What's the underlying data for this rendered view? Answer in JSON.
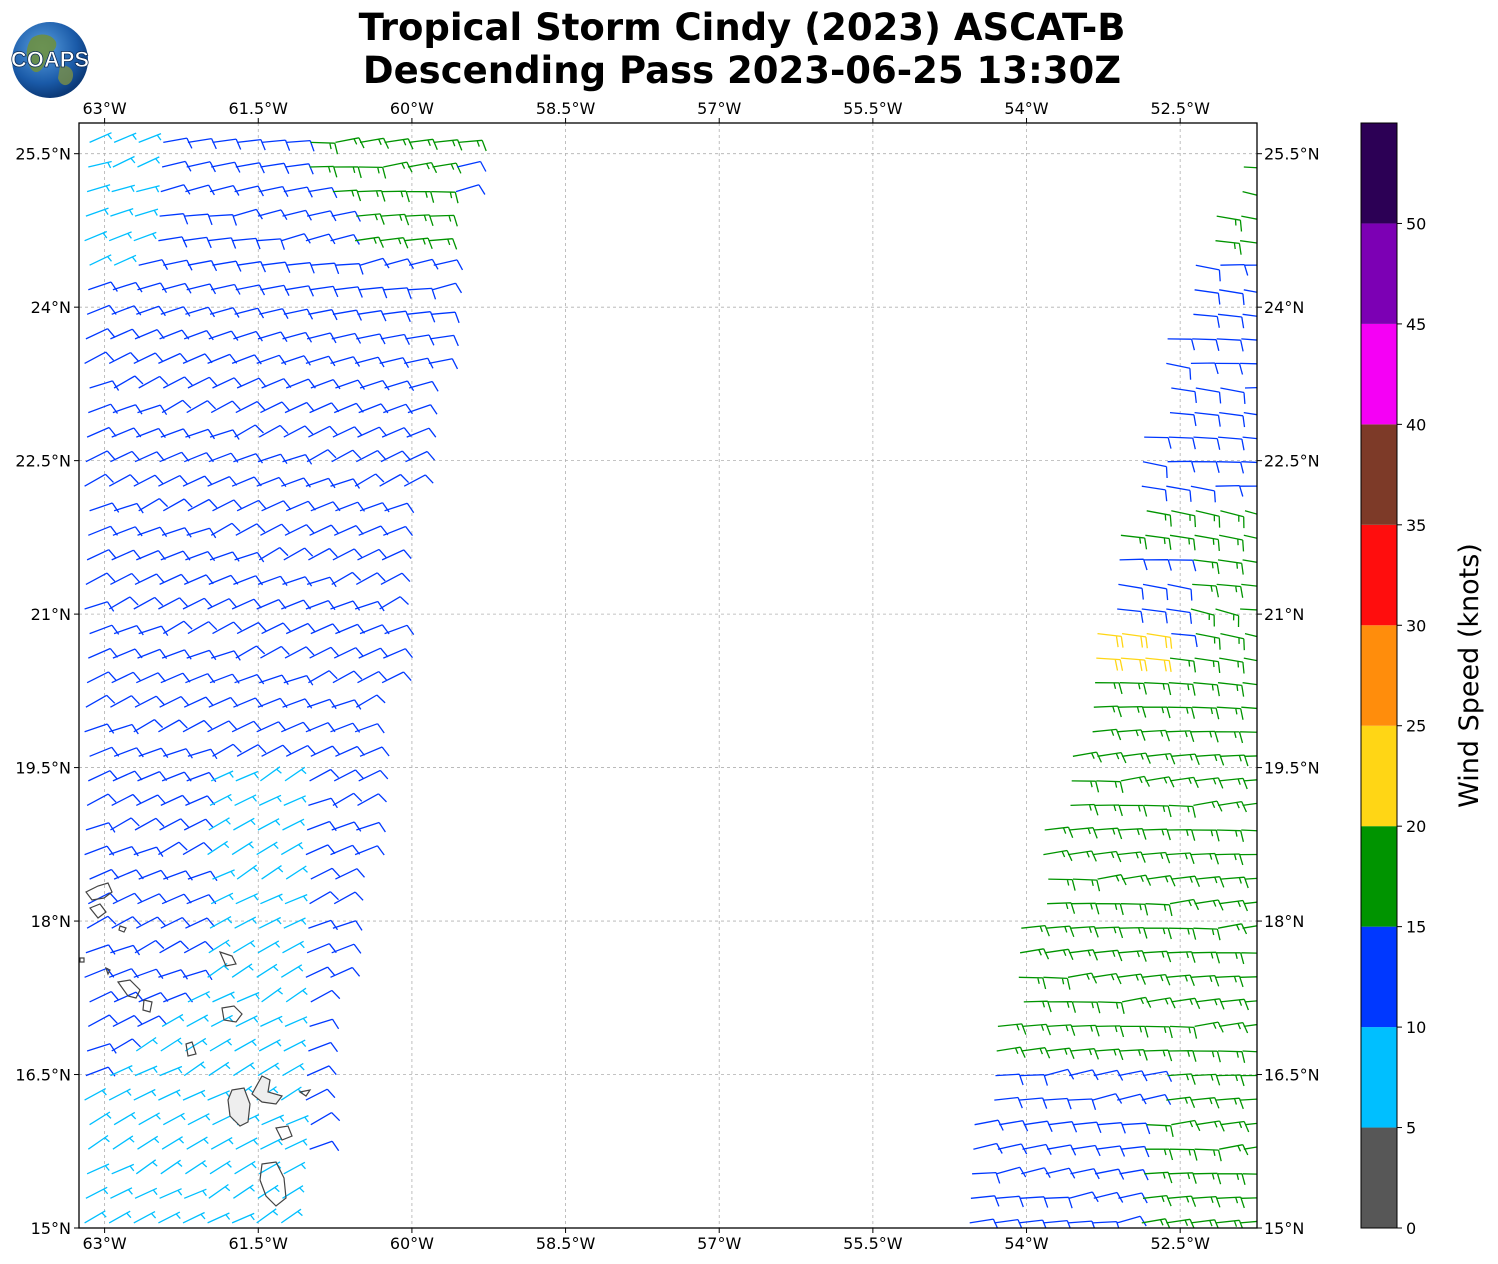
{
  "title": {
    "line1": "Tropical Storm Cindy (2023) ASCAT-B",
    "line2": "Descending Pass 2023-06-25 13:30Z"
  },
  "logo": {
    "text": "COAPS",
    "icon": "coaps-globe-logo"
  },
  "map": {
    "lon_range": [
      -63.25,
      -51.75
    ],
    "lat_range": [
      15.0,
      25.8
    ],
    "x_ticks": [
      {
        "value": -63.0,
        "label": "63°W"
      },
      {
        "value": -61.5,
        "label": "61.5°W"
      },
      {
        "value": -60.0,
        "label": "60°W"
      },
      {
        "value": -58.5,
        "label": "58.5°W"
      },
      {
        "value": -57.0,
        "label": "57°W"
      },
      {
        "value": -55.5,
        "label": "55.5°W"
      },
      {
        "value": -54.0,
        "label": "54°W"
      },
      {
        "value": -52.5,
        "label": "52.5°W"
      }
    ],
    "y_ticks": [
      {
        "value": 15.0,
        "label": "15°N"
      },
      {
        "value": 16.5,
        "label": "16.5°N"
      },
      {
        "value": 18.0,
        "label": "18°N"
      },
      {
        "value": 19.5,
        "label": "19.5°N"
      },
      {
        "value": 21.0,
        "label": "21°N"
      },
      {
        "value": 22.5,
        "label": "22.5°N"
      },
      {
        "value": 24.0,
        "label": "24°N"
      },
      {
        "value": 25.5,
        "label": "25.5°N"
      }
    ],
    "gridlines": true,
    "coast_color": "#444444"
  },
  "colorbar": {
    "title": "Wind Speed (knots)",
    "bins": [
      {
        "min": 0,
        "max": 5,
        "color": "#575757"
      },
      {
        "min": 5,
        "max": 10,
        "color": "#00bfff"
      },
      {
        "min": 10,
        "max": 15,
        "color": "#0038ff"
      },
      {
        "min": 15,
        "max": 20,
        "color": "#009400"
      },
      {
        "min": 20,
        "max": 25,
        "color": "#ffd615"
      },
      {
        "min": 25,
        "max": 30,
        "color": "#ff8d0c"
      },
      {
        "min": 30,
        "max": 35,
        "color": "#ff0d0d"
      },
      {
        "min": 35,
        "max": 40,
        "color": "#7d3a28"
      },
      {
        "min": 40,
        "max": 45,
        "color": "#f500f5"
      },
      {
        "min": 45,
        "max": 50,
        "color": "#7c00b4"
      },
      {
        "min": 50,
        "max": 55,
        "color": "#2c0055"
      }
    ],
    "tick_labels": [
      "0",
      "5",
      "10",
      "15",
      "20",
      "25",
      "30",
      "35",
      "40",
      "45",
      "50"
    ]
  },
  "swaths": [
    {
      "name": "western-swath",
      "corners": [
        [
          -63.25,
          25.8
        ],
        [
          -59.45,
          25.8
        ],
        [
          -61.1,
          15.0
        ],
        [
          -63.25,
          15.0
        ]
      ],
      "regions": [
        {
          "speed": 12,
          "dir_deg": 80
        },
        {
          "speed": 7,
          "dir_deg": 75,
          "poly": [
            [
              -62.1,
              19.5
            ],
            [
              -61.0,
              19.5
            ],
            [
              -61.2,
              15.0
            ],
            [
              -63.25,
              15.0
            ],
            [
              -63.25,
              16.3
            ],
            [
              -62.0,
              17.4
            ]
          ]
        },
        {
          "speed": 17,
          "dir_deg": 85,
          "poly": [
            [
              -61.3,
              25.8
            ],
            [
              -59.45,
              25.8
            ],
            [
              -59.8,
              24.6
            ],
            [
              -60.6,
              24.6
            ]
          ]
        },
        {
          "speed": 7,
          "dir_deg": 70,
          "poly": [
            [
              -63.25,
              25.8
            ],
            [
              -62.5,
              25.8
            ],
            [
              -62.7,
              24.4
            ],
            [
              -63.25,
              24.4
            ]
          ]
        }
      ]
    },
    {
      "name": "eastern-swath",
      "corners": [
        [
          -51.75,
          25.8
        ],
        [
          -51.75,
          15.0
        ],
        [
          -54.8,
          15.0
        ],
        [
          -52.4,
          24.6
        ]
      ],
      "regions": [
        {
          "speed": 17,
          "dir_deg": 100
        },
        {
          "speed": 12,
          "dir_deg": 95,
          "poly": [
            [
              -52.4,
              24.6
            ],
            [
              -51.75,
              24.6
            ],
            [
              -51.75,
              22.2
            ],
            [
              -53.0,
              22.2
            ]
          ]
        },
        {
          "speed": 12,
          "dir_deg": 95,
          "poly": [
            [
              -53.2,
              21.6
            ],
            [
              -52.4,
              21.6
            ],
            [
              -52.6,
              20.6
            ],
            [
              -53.5,
              20.6
            ]
          ]
        },
        {
          "speed": 22,
          "dir_deg": 100,
          "poly": [
            [
              -53.5,
              20.9
            ],
            [
              -52.6,
              20.9
            ],
            [
              -52.7,
              20.4
            ],
            [
              -53.6,
              20.4
            ]
          ]
        },
        {
          "speed": 12,
          "dir_deg": 95,
          "poly": [
            [
              -54.8,
              16.6
            ],
            [
              -52.8,
              16.6
            ],
            [
              -53.0,
              15.0
            ],
            [
              -54.8,
              15.0
            ]
          ]
        }
      ]
    }
  ]
}
